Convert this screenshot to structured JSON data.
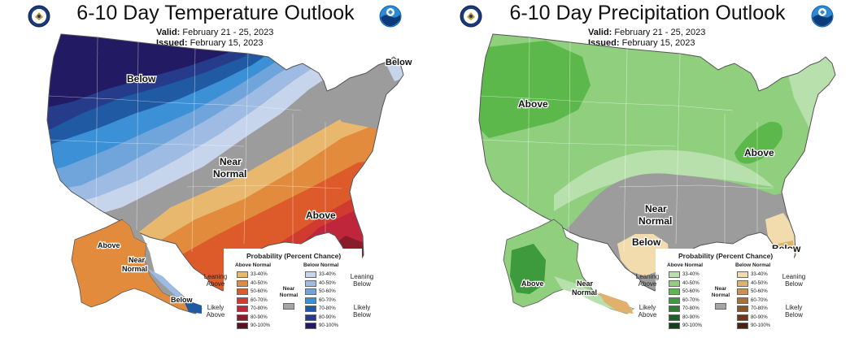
{
  "temperature": {
    "title": "6-10 Day Temperature Outlook",
    "valid_label": "Valid:",
    "valid_dates": "February 21 - 25, 2023",
    "issued_label": "Issued:",
    "issued_date": "February 15, 2023",
    "regions": {
      "below_north": "Below",
      "below_maine": "Below",
      "near_normal_1": "Near",
      "near_normal_2": "Normal",
      "above_southeast": "Above",
      "ak_above": "Above",
      "ak_near_1": "Near",
      "ak_near_2": "Normal",
      "ak_below": "Below"
    },
    "legend": {
      "title": "Probability (Percent Chance)",
      "col_left": "Above Normal",
      "col_right": "Below Normal",
      "left_items": [
        {
          "label": "33-40%",
          "color": "#e8b86e"
        },
        {
          "label": "40-50%",
          "color": "#e38b3c"
        },
        {
          "label": "50-60%",
          "color": "#dd5a2b"
        },
        {
          "label": "60-70%",
          "color": "#d13b2f"
        },
        {
          "label": "70-80%",
          "color": "#c0263b"
        },
        {
          "label": "80-90%",
          "color": "#8a1d2c"
        },
        {
          "label": "90-100%",
          "color": "#561420"
        }
      ],
      "right_items": [
        {
          "label": "33-40%",
          "color": "#c6d4ec"
        },
        {
          "label": "40-50%",
          "color": "#9dbbe3"
        },
        {
          "label": "50-60%",
          "color": "#6fa5db"
        },
        {
          "label": "60-70%",
          "color": "#3b90d6"
        },
        {
          "label": "70-80%",
          "color": "#1f5aa2"
        },
        {
          "label": "80-90%",
          "color": "#263b8a"
        },
        {
          "label": "90-100%",
          "color": "#221a62"
        }
      ],
      "leaning_left_1": "Leaning",
      "leaning_left_2": "Above",
      "likely_left_1": "Likely",
      "likely_left_2": "Above",
      "leaning_right_1": "Leaning",
      "leaning_right_2": "Below",
      "likely_right_1": "Likely",
      "likely_right_2": "Below",
      "near_1": "Near",
      "near_2": "Normal",
      "near_color": "#a6a6a6"
    }
  },
  "precipitation": {
    "title": "6-10 Day Precipitation Outlook",
    "valid_label": "Valid:",
    "valid_dates": "February 21 - 25, 2023",
    "issued_label": "Issued:",
    "issued_date": "February 15, 2023",
    "regions": {
      "above_west": "Above",
      "above_ohio": "Above",
      "near_normal_1": "Near",
      "near_normal_2": "Normal",
      "below_texas": "Below",
      "below_florida": "Below",
      "ak_above": "Above",
      "ak_near_1": "Near",
      "ak_near_2": "Normal"
    },
    "legend": {
      "title": "Probability (Percent Chance)",
      "col_left": "Above Normal",
      "col_right": "Below Normal",
      "left_items": [
        {
          "label": "33-40%",
          "color": "#b8e0ad"
        },
        {
          "label": "40-50%",
          "color": "#8fcf7e"
        },
        {
          "label": "50-60%",
          "color": "#5cb84a"
        },
        {
          "label": "60-70%",
          "color": "#3d9a3d"
        },
        {
          "label": "70-80%",
          "color": "#2f7d32"
        },
        {
          "label": "80-90%",
          "color": "#215e26"
        },
        {
          "label": "90-100%",
          "color": "#16401b"
        }
      ],
      "right_items": [
        {
          "label": "33-40%",
          "color": "#f2dcae"
        },
        {
          "label": "40-50%",
          "color": "#dfb16c"
        },
        {
          "label": "50-60%",
          "color": "#c99450"
        },
        {
          "label": "60-70%",
          "color": "#a7733a"
        },
        {
          "label": "70-80%",
          "color": "#8a5528"
        },
        {
          "label": "80-90%",
          "color": "#6b3a1d"
        },
        {
          "label": "90-100%",
          "color": "#4a2410"
        }
      ],
      "leaning_left_1": "Leaning",
      "leaning_left_2": "Above",
      "likely_left_1": "Likely",
      "likely_left_2": "Above",
      "leaning_right_1": "Leaning",
      "leaning_right_2": "Below",
      "likely_right_1": "Likely",
      "likely_right_2": "Below",
      "near_1": "Near",
      "near_2": "Normal",
      "near_color": "#a6a6a6"
    }
  },
  "colors": {
    "near_normal": "#9c9c9c",
    "outline": "#ffffff"
  },
  "icons": [
    "doc-seal-icon",
    "noaa-logo-icon"
  ]
}
